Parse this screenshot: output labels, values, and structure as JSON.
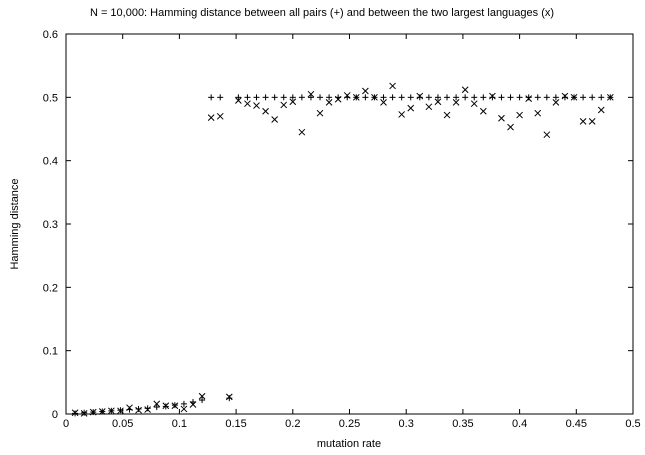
{
  "chart_data": {
    "type": "scatter",
    "title": "N = 10,000: Hamming distance between all pairs (+) and between the two largest languages (x)",
    "xlabel": "mutation rate",
    "ylabel": "Hamming distance",
    "xlim": [
      0,
      0.5
    ],
    "ylim": [
      0,
      0.6
    ],
    "x_ticks": [
      "0",
      "0.05",
      "0.1",
      "0.15",
      "0.2",
      "0.25",
      "0.3",
      "0.35",
      "0.4",
      "0.45",
      "0.5"
    ],
    "y_ticks": [
      "0",
      "0.1",
      "0.2",
      "0.3",
      "0.4",
      "0.5",
      "0.6"
    ],
    "grid": false,
    "series": [
      {
        "marker": "plus",
        "x": [
          0.008,
          0.016,
          0.024,
          0.032,
          0.04,
          0.048,
          0.056,
          0.064,
          0.072,
          0.08,
          0.088,
          0.096,
          0.104,
          0.112,
          0.12,
          0.128,
          0.136,
          0.144,
          0.152,
          0.16,
          0.168,
          0.176,
          0.184,
          0.192,
          0.2,
          0.208,
          0.216,
          0.224,
          0.232,
          0.24,
          0.248,
          0.256,
          0.264,
          0.272,
          0.28,
          0.288,
          0.296,
          0.304,
          0.312,
          0.32,
          0.328,
          0.336,
          0.344,
          0.352,
          0.36,
          0.368,
          0.376,
          0.384,
          0.392,
          0.4,
          0.408,
          0.416,
          0.424,
          0.432,
          0.44,
          0.448,
          0.456,
          0.464,
          0.472,
          0.48
        ],
        "y": [
          0.001,
          0.002,
          0.003,
          0.004,
          0.005,
          0.006,
          0.007,
          0.008,
          0.009,
          0.011,
          0.012,
          0.014,
          0.016,
          0.019,
          0.022,
          0.5,
          0.5,
          0.025,
          0.5,
          0.5,
          0.5,
          0.5,
          0.5,
          0.5,
          0.5,
          0.5,
          0.5,
          0.5,
          0.5,
          0.5,
          0.5,
          0.5,
          0.5,
          0.5,
          0.5,
          0.5,
          0.5,
          0.5,
          0.5,
          0.5,
          0.5,
          0.5,
          0.5,
          0.5,
          0.5,
          0.5,
          0.5,
          0.5,
          0.5,
          0.5,
          0.5,
          0.5,
          0.5,
          0.5,
          0.5,
          0.5,
          0.5,
          0.5,
          0.5,
          0.5
        ]
      },
      {
        "marker": "cross",
        "x": [
          0.008,
          0.016,
          0.024,
          0.032,
          0.04,
          0.048,
          0.056,
          0.064,
          0.072,
          0.08,
          0.088,
          0.096,
          0.104,
          0.112,
          0.12,
          0.128,
          0.136,
          0.144,
          0.152,
          0.16,
          0.168,
          0.176,
          0.184,
          0.192,
          0.2,
          0.208,
          0.216,
          0.224,
          0.232,
          0.24,
          0.248,
          0.256,
          0.264,
          0.272,
          0.28,
          0.288,
          0.296,
          0.304,
          0.312,
          0.32,
          0.328,
          0.336,
          0.344,
          0.352,
          0.36,
          0.368,
          0.376,
          0.384,
          0.392,
          0.4,
          0.408,
          0.416,
          0.424,
          0.432,
          0.44,
          0.448,
          0.456,
          0.464,
          0.472,
          0.48
        ],
        "y": [
          0.002,
          0.001,
          0.003,
          0.004,
          0.005,
          0.005,
          0.01,
          0.006,
          0.007,
          0.016,
          0.013,
          0.013,
          0.008,
          0.015,
          0.028,
          0.468,
          0.47,
          0.027,
          0.495,
          0.49,
          0.487,
          0.478,
          0.465,
          0.488,
          0.493,
          0.445,
          0.505,
          0.475,
          0.492,
          0.497,
          0.503,
          0.5,
          0.51,
          0.5,
          0.492,
          0.518,
          0.473,
          0.483,
          0.502,
          0.485,
          0.493,
          0.472,
          0.492,
          0.512,
          0.49,
          0.478,
          0.502,
          0.467,
          0.453,
          0.472,
          0.498,
          0.475,
          0.441,
          0.492,
          0.502,
          0.5,
          0.462,
          0.462,
          0.48,
          0.5
        ]
      }
    ]
  }
}
